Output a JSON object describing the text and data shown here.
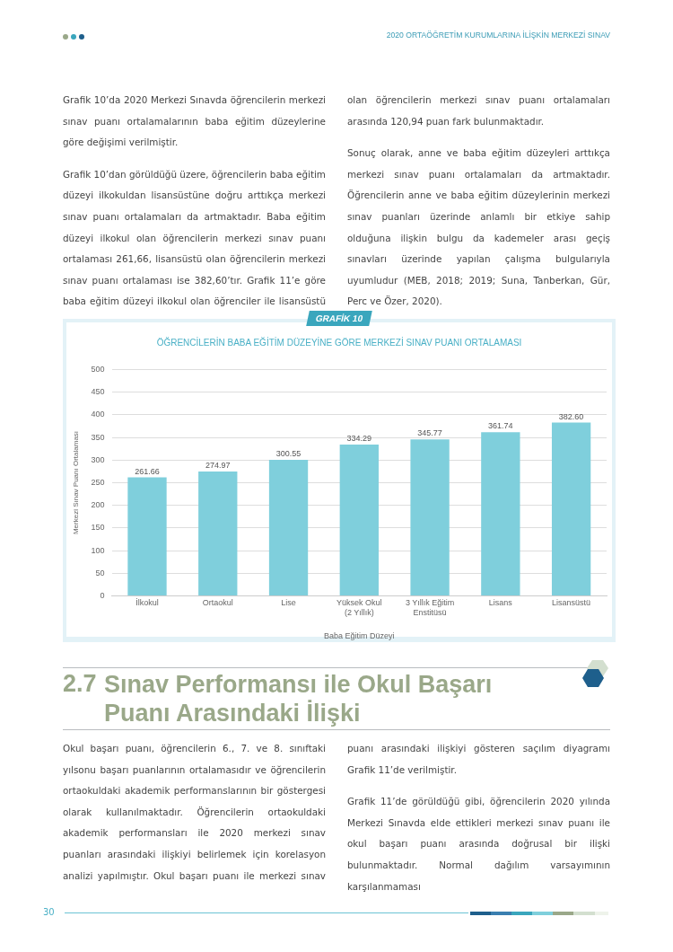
{
  "chart_data": {
    "type": "bar",
    "title": "ÖĞRENCİLERİN BABA EĞİTİM DÜZEYİNE GÖRE MERKEZİ SINAV PUANI ORTALAMASI",
    "xlabel": "Baba Eğitim Düzeyi",
    "ylabel": "Merkezi Sınav Puanı Ortalaması",
    "categories": [
      "İlkokul",
      "Ortaokul",
      "Lise",
      "Yüksek Okul\n(2 Yıllık)",
      "3 Yıllık Eğitim\nEnstitüsü",
      "Lisans",
      "Lisansüstü"
    ],
    "values": [
      261.66,
      274.97,
      300.55,
      334.29,
      345.77,
      361.74,
      382.6
    ],
    "value_labels": [
      "261.66",
      "274.97",
      "300.55",
      "334.29",
      "345.77",
      "361.74",
      "382.60"
    ],
    "color": "#7fcfdc",
    "ylim": [
      0,
      500
    ],
    "yticks": [
      0,
      50,
      100,
      150,
      200,
      250,
      300,
      350,
      400,
      450,
      500
    ],
    "grid": "y",
    "annotations": [
      "2020 ORTAÖĞRETİM KURUMLARINA İLİŞKİN MERKEZİ SINAV",
      "Grafik 10’da 2020 Merkezi Sınavda öğrencilerin merkezi sınav puanı ortalamalarının baba eğitim düzeylerine göre değişimi verilmiştir.",
      "Grafik 10’dan görüldüğü üzere, öğrencilerin baba eğitim düzeyi ilkokuldan lisansüstüne doğru arttıkça merkezi sınav puanı ortalamaları da artmaktadır. Baba eğitim düzeyi ilkokul olan öğrencilerin merkezi sınav puanı ortalaması 261,66, lisansüstü olan öğrencilerin merkezi sınav puanı ortalaması ise 382,60’tır. Grafik 11’e göre baba eğitim düzeyi ilkokul olan öğrenciler ile lisansüstü olan öğrencilerin merkezi sınav puanı ortalamaları arasında 120,94 puan fark bulunmaktadır.",
      "Sonuç olarak, anne ve baba eğitim düzeyleri arttıkça merkezi sınav puanı ortalamaları da artmaktadır. Öğrencilerin anne ve baba eğitim düzeylerinin merkezi sınav puanları üzerinde anlamlı bir etkiye sahip olduğuna ilişkin bulgu da kademeler arası geçiş sınavları üzerinde yapılan çalışma bulgularıyla uyumludur (MEB, 2018; 2019; Suna, Tanberkan, Gür, Perc ve Özer, 2020).",
      "GRAFİK 10",
      "2.7",
      "Sınav Performansı ile Okul Başarı Puanı Arasındaki İlişki",
      "Okul başarı puanı, öğrencilerin 6., 7. ve 8. sınıftaki yılsonu başarı puanlarının ortalamasıdır ve öğrencilerin ortaokuldaki akademik performanslarının bir göstergesi olarak kullanılmaktadır. Öğrencilerin ortaokuldaki akademik performansları ile 2020 merkezi sınav puanları arasındaki ilişkiyi belirlemek için korelasyon analizi yapılmıştır. Okul başarı puanı ile merkezi sınav puanı arasındaki ilişkiyi gösteren saçılım diyagramı Grafik 11’de verilmiştir.",
      "Grafik 11’de görüldüğü gibi, öğrencilerin 2020 yılında Merkezi Sınavda elde ettikleri merkezi sınav puanı ile okul başarı puanı arasında doğrusal bir ilişki bulunmaktadır. Normal dağılım varsayımının karşılanmaması",
      "30"
    ]
  }
}
